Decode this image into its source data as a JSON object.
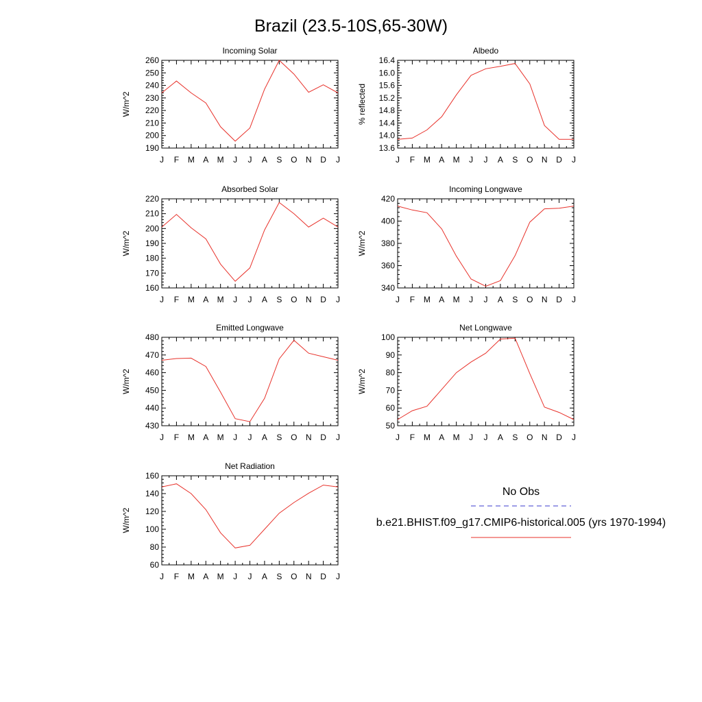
{
  "title": "Brazil (23.5-10S,65-30W)",
  "chart_data": {
    "type": "line",
    "months": [
      "J",
      "F",
      "M",
      "A",
      "M",
      "J",
      "J",
      "A",
      "S",
      "O",
      "N",
      "D",
      "J"
    ],
    "panels": [
      {
        "title": "Incoming Solar",
        "ylabel": "W/m^2",
        "ylim": [
          190,
          260
        ],
        "yticks": [
          190,
          200,
          210,
          220,
          230,
          240,
          250,
          260
        ],
        "ytick_labels": [
          "190",
          "200",
          "210",
          "220",
          "230",
          "240",
          "250",
          "260"
        ],
        "series": [
          {
            "name": "b.e21.BHIST.f09_g17.CMIP6-historical.005 (yrs 1970-1994)",
            "values": [
              234,
              243.5,
              234,
              226,
              207,
              195.5,
              206,
              237,
              260,
              249,
              234.5,
              240.5,
              234
            ]
          }
        ]
      },
      {
        "title": "Albedo",
        "ylabel": "% reflected",
        "ylim": [
          13.6,
          16.4
        ],
        "yticks": [
          13.6,
          14.0,
          14.4,
          14.8,
          15.2,
          15.6,
          16.0,
          16.4
        ],
        "ytick_labels": [
          "13.6",
          "14.0",
          "14.4",
          "14.8",
          "15.2",
          "15.6",
          "16.0",
          "16.4"
        ],
        "series": [
          {
            "name": "b.e21.BHIST.f09_g17.CMIP6-historical.005 (yrs 1970-1994)",
            "values": [
              13.88,
              13.92,
              14.18,
              14.6,
              15.3,
              15.92,
              16.13,
              16.21,
              16.3,
              15.65,
              14.32,
              13.88,
              13.88
            ]
          }
        ]
      },
      {
        "title": "Absorbed Solar",
        "ylabel": "W/m^2",
        "ylim": [
          160,
          220
        ],
        "yticks": [
          160,
          170,
          180,
          190,
          200,
          210,
          220
        ],
        "ytick_labels": [
          "160",
          "170",
          "180",
          "190",
          "200",
          "210",
          "220"
        ],
        "series": [
          {
            "name": "b.e21.BHIST.f09_g17.CMIP6-historical.005 (yrs 1970-1994)",
            "values": [
              201,
              209.5,
              200.5,
              193,
              176,
              164.5,
              173.5,
              199,
              217.5,
              210,
              201,
              207,
              201
            ]
          }
        ]
      },
      {
        "title": "Incoming Longwave",
        "ylabel": "W/m^2",
        "ylim": [
          340,
          420
        ],
        "yticks": [
          340,
          360,
          380,
          400,
          420
        ],
        "ytick_labels": [
          "340",
          "360",
          "380",
          "400",
          "420"
        ],
        "series": [
          {
            "name": "b.e21.BHIST.f09_g17.CMIP6-historical.005 (yrs 1970-1994)",
            "values": [
              413.5,
              410,
              407.5,
              393,
              368.5,
              348,
              341.5,
              346.5,
              369,
              399,
              411,
              411.5,
              413.5
            ]
          }
        ]
      },
      {
        "title": "Emitted Longwave",
        "ylabel": "W/m^2",
        "ylim": [
          430,
          480
        ],
        "yticks": [
          430,
          440,
          450,
          460,
          470,
          480
        ],
        "ytick_labels": [
          "430",
          "440",
          "450",
          "460",
          "470",
          "480"
        ],
        "series": [
          {
            "name": "b.e21.BHIST.f09_g17.CMIP6-historical.005 (yrs 1970-1994)",
            "values": [
              467,
              468,
              468.2,
              463.5,
              449,
              434,
              432.3,
              445.5,
              467.8,
              478.3,
              471,
              469,
              467
            ]
          }
        ]
      },
      {
        "title": "Net Longwave",
        "ylabel": "W/m^2",
        "ylim": [
          50,
          100
        ],
        "yticks": [
          50,
          60,
          70,
          80,
          90,
          100
        ],
        "ytick_labels": [
          "50",
          "60",
          "70",
          "80",
          "90",
          "100"
        ],
        "series": [
          {
            "name": "b.e21.BHIST.f09_g17.CMIP6-historical.005 (yrs 1970-1994)",
            "values": [
              53.5,
              58.5,
              61,
              70.5,
              80,
              86,
              91,
              99,
              99.5,
              79.5,
              60.5,
              57.5,
              53.5
            ]
          }
        ]
      },
      {
        "title": "Net Radiation",
        "ylabel": "W/m^2",
        "ylim": [
          60,
          160
        ],
        "yticks": [
          60,
          80,
          100,
          120,
          140,
          160
        ],
        "ytick_labels": [
          "60",
          "80",
          "100",
          "120",
          "140",
          "160"
        ],
        "series": [
          {
            "name": "b.e21.BHIST.f09_g17.CMIP6-historical.005 (yrs 1970-1994)",
            "values": [
              147.5,
              151,
              140,
              122,
              96,
              79,
              82,
              100,
              118,
              130,
              140.5,
              149.5,
              147.5
            ]
          }
        ]
      }
    ],
    "legend": [
      {
        "label": "No Obs",
        "color": "#3a3acc",
        "style": "dashed"
      },
      {
        "label": "b.e21.BHIST.f09_g17.CMIP6-historical.005 (yrs 1970-1994)",
        "color": "#e8312a",
        "style": "solid"
      }
    ],
    "line_color": "#e8312a"
  }
}
